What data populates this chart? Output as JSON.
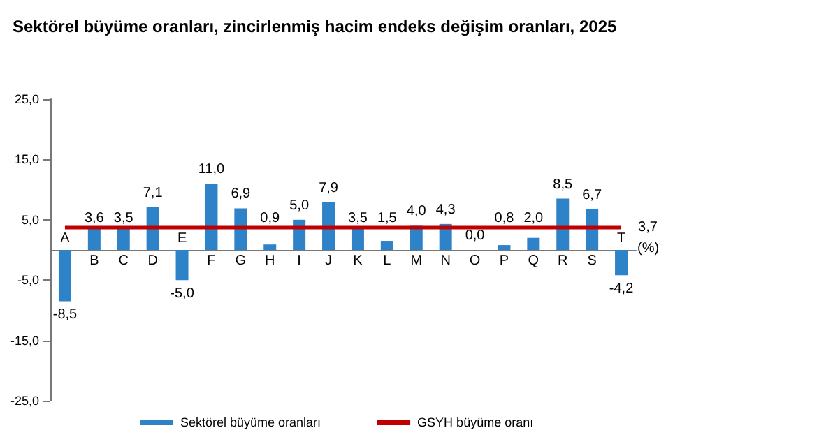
{
  "chart_data": {
    "type": "bar",
    "title": "Sektörel büyüme oranları, zincirlenmiş hacim endeks değişim oranları, 2025",
    "categories": [
      "A",
      "B",
      "C",
      "D",
      "E",
      "F",
      "G",
      "H",
      "I",
      "J",
      "K",
      "L",
      "M",
      "N",
      "O",
      "P",
      "Q",
      "R",
      "S",
      "T"
    ],
    "series": [
      {
        "name": "Sektörel büyüme oranları",
        "color": "#2e82c8",
        "values": [
          -8.5,
          3.6,
          3.5,
          7.1,
          -5.0,
          11.0,
          6.9,
          0.9,
          5.0,
          7.9,
          3.5,
          1.5,
          4.0,
          4.3,
          0.0,
          0.8,
          2.0,
          8.5,
          6.7,
          -4.2
        ],
        "value_labels": [
          "-8,5",
          "3,6",
          "3,5",
          "7,1",
          "-5,0",
          "11,0",
          "6,9",
          "0,9",
          "5,0",
          "7,9",
          "3,5",
          "1,5",
          "4,0",
          "4,3",
          "0,0",
          "0,8",
          "2,0",
          "8,5",
          "6,7",
          "-4,2"
        ]
      },
      {
        "name": "GSYH büyüme oranı",
        "type": "line",
        "color": "#c00000",
        "marker": "none",
        "values": [
          3.7,
          3.7,
          3.7,
          3.7,
          3.7,
          3.7,
          3.7,
          3.7,
          3.7,
          3.7,
          3.7,
          3.7,
          3.7,
          3.7,
          3.7,
          3.7,
          3.7,
          3.7,
          3.7,
          3.7
        ],
        "value_labels": [
          null,
          null,
          null,
          null,
          null,
          null,
          null,
          null,
          null,
          null,
          null,
          null,
          null,
          null,
          null,
          null,
          null,
          null,
          null,
          "3,7"
        ]
      }
    ],
    "ylim": [
      -25,
      25
    ],
    "yticks": [
      {
        "value": -25,
        "label": "-25,0"
      },
      {
        "value": -15,
        "label": "-15,0"
      },
      {
        "value": -5,
        "label": "-5,0"
      },
      {
        "value": 5,
        "label": "5,0"
      },
      {
        "value": 15,
        "label": "15,0"
      },
      {
        "value": 25,
        "label": "25,0"
      }
    ],
    "annotations": [
      "(%)"
    ],
    "grid": false,
    "legend": "bottom"
  }
}
